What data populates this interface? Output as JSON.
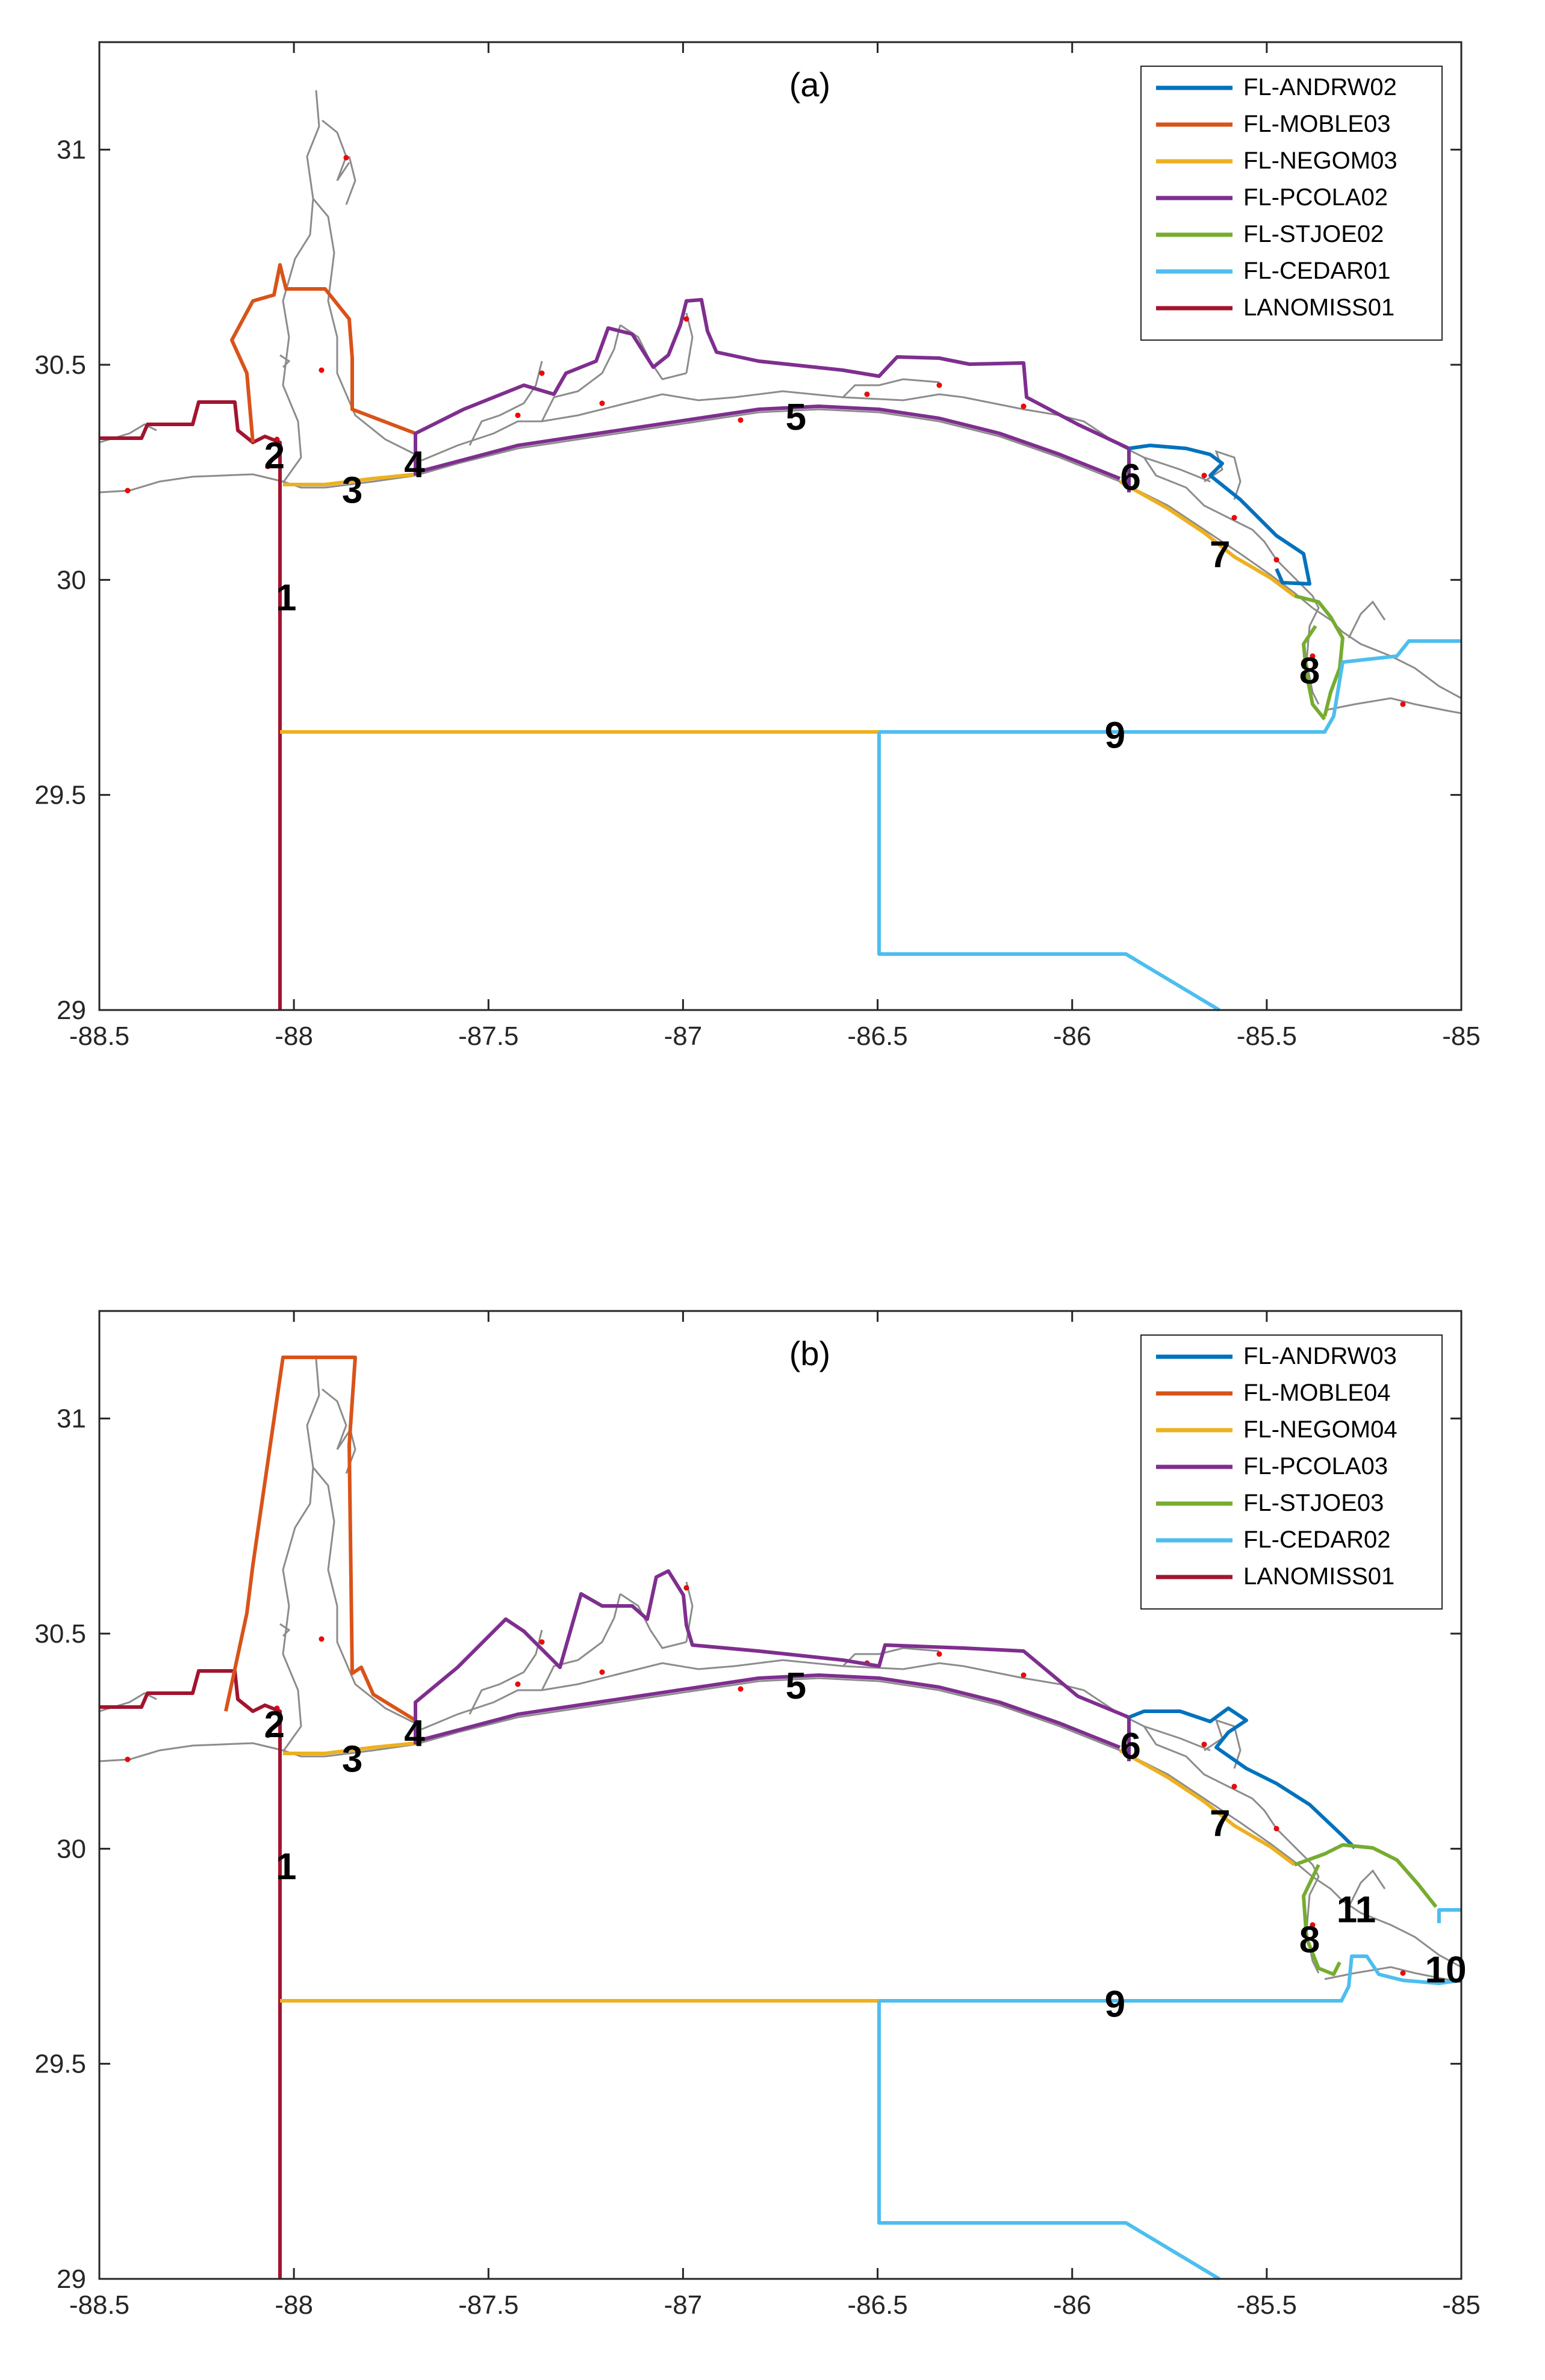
{
  "panels": [
    {
      "id": "a",
      "title": "(a)",
      "xlim": [
        -88.5,
        -85
      ],
      "ylim": [
        29,
        31.25
      ],
      "xticks": [
        "-88.5",
        "-88",
        "-87.5",
        "-87",
        "-86.5",
        "-86",
        "-85.5",
        "-85"
      ],
      "yticks": [
        "29",
        "29.5",
        "30",
        "30.5",
        "31"
      ],
      "legend": [
        {
          "label": "FL-ANDRW02",
          "color": "#0072BD"
        },
        {
          "label": "FL-MOBLE03",
          "color": "#D95319"
        },
        {
          "label": "FL-NEGOM03",
          "color": "#EDB120"
        },
        {
          "label": "FL-PCOLA02",
          "color": "#7E2F8E"
        },
        {
          "label": "FL-STJOE02",
          "color": "#77AC30"
        },
        {
          "label": "FL-CEDAR01",
          "color": "#4DBEEE"
        },
        {
          "label": "LANOMISS01",
          "color": "#A2142F"
        }
      ],
      "segment_labels": [
        {
          "text": "1",
          "lon": -88.02,
          "lat": 29.96
        },
        {
          "text": "2",
          "lon": -88.05,
          "lat": 30.29
        },
        {
          "text": "3",
          "lon": -87.85,
          "lat": 30.21
        },
        {
          "text": "4",
          "lon": -87.69,
          "lat": 30.27
        },
        {
          "text": "5",
          "lon": -86.71,
          "lat": 30.38
        },
        {
          "text": "6",
          "lon": -85.85,
          "lat": 30.24
        },
        {
          "text": "7",
          "lon": -85.62,
          "lat": 30.06
        },
        {
          "text": "8",
          "lon": -85.39,
          "lat": 29.79
        },
        {
          "text": "9",
          "lon": -85.89,
          "lat": 29.64
        }
      ]
    },
    {
      "id": "b",
      "title": "(b)",
      "xlim": [
        -88.5,
        -85
      ],
      "ylim": [
        29,
        31.25
      ],
      "xticks": [
        "-88.5",
        "-88",
        "-87.5",
        "-87",
        "-86.5",
        "-86",
        "-85.5",
        "-85"
      ],
      "yticks": [
        "29",
        "29.5",
        "30",
        "30.5",
        "31"
      ],
      "legend": [
        {
          "label": "FL-ANDRW03",
          "color": "#0072BD"
        },
        {
          "label": "FL-MOBLE04",
          "color": "#D95319"
        },
        {
          "label": "FL-NEGOM04",
          "color": "#EDB120"
        },
        {
          "label": "FL-PCOLA03",
          "color": "#7E2F8E"
        },
        {
          "label": "FL-STJOE03",
          "color": "#77AC30"
        },
        {
          "label": "FL-CEDAR02",
          "color": "#4DBEEE"
        },
        {
          "label": "LANOMISS01",
          "color": "#A2142F"
        }
      ],
      "segment_labels": [
        {
          "text": "1",
          "lon": -88.02,
          "lat": 29.96
        },
        {
          "text": "2",
          "lon": -88.05,
          "lat": 30.29
        },
        {
          "text": "3",
          "lon": -87.85,
          "lat": 30.21
        },
        {
          "text": "4",
          "lon": -87.69,
          "lat": 30.27
        },
        {
          "text": "5",
          "lon": -86.71,
          "lat": 30.38
        },
        {
          "text": "6",
          "lon": -85.85,
          "lat": 30.24
        },
        {
          "text": "7",
          "lon": -85.62,
          "lat": 30.06
        },
        {
          "text": "8",
          "lon": -85.39,
          "lat": 29.79
        },
        {
          "text": "9",
          "lon": -85.89,
          "lat": 29.64
        },
        {
          "text": "10",
          "lon": -85.04,
          "lat": 29.72
        },
        {
          "text": "11",
          "lon": -85.27,
          "lat": 29.86
        }
      ]
    }
  ]
}
